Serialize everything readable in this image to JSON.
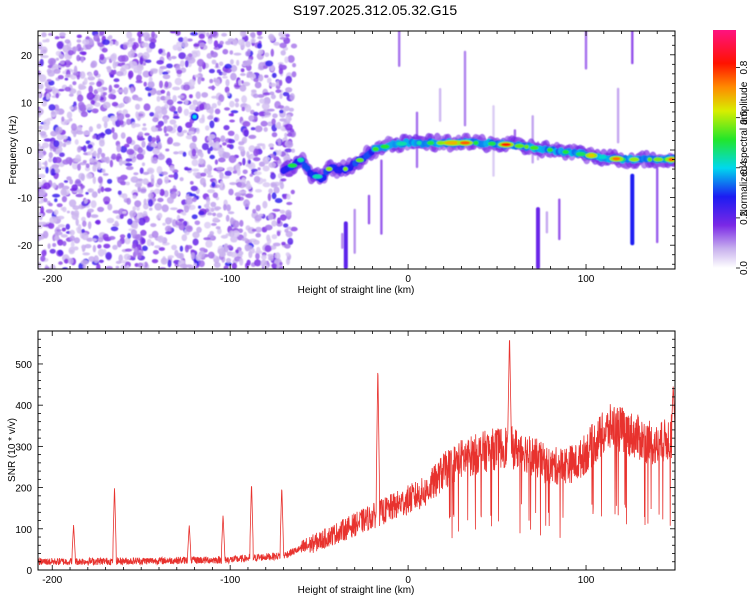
{
  "title": "S197.2025.312.05.32.G15",
  "colors": {
    "snr_line": "#e8322e",
    "frame": "#000000",
    "background": "#ffffff"
  },
  "chart_data": [
    {
      "type": "heatmap",
      "title": "",
      "xlabel": "Height of straight line (km)",
      "ylabel": "Frequency (Hz)",
      "xlim": [
        -208,
        150
      ],
      "ylim": [
        -25,
        25
      ],
      "x_ticks": [
        -200,
        -100,
        0,
        100
      ],
      "y_ticks": [
        -20,
        -10,
        0,
        10,
        20
      ],
      "colorbar": {
        "label": "Normalized spectral amplitude",
        "range": [
          0,
          0.95
        ],
        "ticks": [
          0.0,
          0.2,
          0.4,
          0.6,
          0.8
        ],
        "colormap": "rainbow (white-purple-blue-cyan-green-yellow-red-magenta)"
      },
      "features": {
        "noise_region_x": [
          -208,
          -70
        ],
        "ridge": [
          {
            "x": -68,
            "f": -4
          },
          {
            "x": -60,
            "f": -2
          },
          {
            "x": -55,
            "f": -5
          },
          {
            "x": -48,
            "f": -6
          },
          {
            "x": -45,
            "f": -4
          },
          {
            "x": -35,
            "f": -4
          },
          {
            "x": -30,
            "f": -3
          },
          {
            "x": -20,
            "f": 0
          },
          {
            "x": -10,
            "f": 1
          },
          {
            "x": 0,
            "f": 1.5
          },
          {
            "x": 20,
            "f": 1.5
          },
          {
            "x": 40,
            "f": 1.5
          },
          {
            "x": 60,
            "f": 1
          },
          {
            "x": 80,
            "f": 0
          },
          {
            "x": 100,
            "f": -1
          },
          {
            "x": 120,
            "f": -2
          },
          {
            "x": 150,
            "f": -2
          }
        ]
      }
    },
    {
      "type": "line",
      "title": "",
      "xlabel": "Height of straight line (km)",
      "ylabel": "SNR (10 * v/v)",
      "xlim": [
        -208,
        150
      ],
      "ylim": [
        0,
        580
      ],
      "x_ticks": [
        -200,
        -100,
        0,
        100
      ],
      "y_ticks": [
        0,
        100,
        200,
        300,
        400,
        500
      ],
      "grid": false,
      "series": [
        {
          "baseline": [
            {
              "x": -208,
              "snr": 20
            },
            {
              "x": -150,
              "snr": 22
            },
            {
              "x": -100,
              "snr": 25
            },
            {
              "x": -70,
              "snr": 35
            },
            {
              "x": -50,
              "snr": 70
            },
            {
              "x": -30,
              "snr": 110
            },
            {
              "x": -10,
              "snr": 150
            },
            {
              "x": 10,
              "snr": 190
            },
            {
              "x": 20,
              "snr": 240
            },
            {
              "x": 30,
              "snr": 270
            },
            {
              "x": 45,
              "snr": 290
            },
            {
              "x": 55,
              "snr": 300
            },
            {
              "x": 65,
              "snr": 290
            },
            {
              "x": 80,
              "snr": 250
            },
            {
              "x": 95,
              "snr": 260
            },
            {
              "x": 105,
              "snr": 310
            },
            {
              "x": 115,
              "snr": 350
            },
            {
              "x": 125,
              "snr": 330
            },
            {
              "x": 140,
              "snr": 300
            },
            {
              "x": 150,
              "snr": 330
            }
          ],
          "spikes": [
            {
              "x": -188,
              "snr": 110
            },
            {
              "x": -165,
              "snr": 205
            },
            {
              "x": -123,
              "snr": 110
            },
            {
              "x": -104,
              "snr": 135
            },
            {
              "x": -88,
              "snr": 215
            },
            {
              "x": -71,
              "snr": 205
            },
            {
              "x": -17,
              "snr": 500
            },
            {
              "x": 57,
              "snr": 575
            },
            {
              "x": 149,
              "snr": 450
            }
          ]
        }
      ]
    }
  ]
}
